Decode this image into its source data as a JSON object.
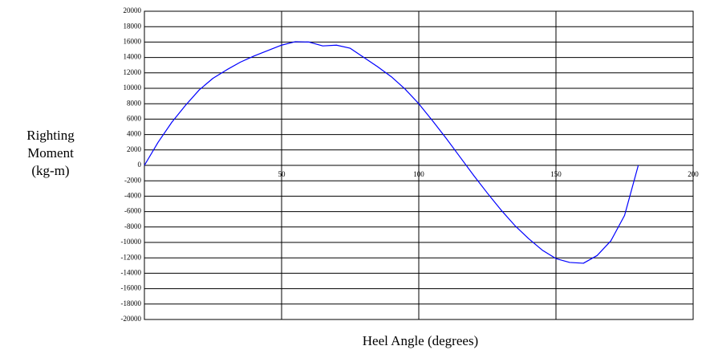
{
  "chart_data": {
    "type": "line",
    "xlabel": "Heel Angle (degrees)",
    "ylabel": [
      "Righting",
      "Moment",
      "(kg-m)"
    ],
    "x": [
      0,
      5,
      10,
      15,
      20,
      25,
      30,
      35,
      40,
      45,
      50,
      55,
      60,
      65,
      70,
      75,
      80,
      85,
      90,
      95,
      100,
      105,
      110,
      115,
      120,
      125,
      130,
      135,
      140,
      145,
      150,
      155,
      160,
      165,
      170,
      175,
      180
    ],
    "series": [
      {
        "name": "Righting Moment",
        "color": "#0000ff",
        "values": [
          0,
          3000,
          5600,
          7800,
          9800,
          11300,
          12400,
          13400,
          14200,
          14900,
          15600,
          16050,
          16000,
          15500,
          15600,
          15200,
          14000,
          12800,
          11500,
          9900,
          8000,
          5800,
          3500,
          1100,
          -1300,
          -3600,
          -5800,
          -7800,
          -9500,
          -11000,
          -12100,
          -12600,
          -12700,
          -11700,
          -9800,
          -6500,
          0
        ]
      }
    ],
    "xlim": [
      0,
      200
    ],
    "xticks": [
      50,
      100,
      150,
      200
    ],
    "ylim": [
      -20000,
      20000
    ],
    "yticks": [
      -20000,
      -18000,
      -16000,
      -14000,
      -12000,
      -10000,
      -8000,
      -6000,
      -4000,
      -2000,
      0,
      2000,
      4000,
      6000,
      8000,
      10000,
      12000,
      14000,
      16000,
      18000,
      20000
    ],
    "grid": true
  }
}
